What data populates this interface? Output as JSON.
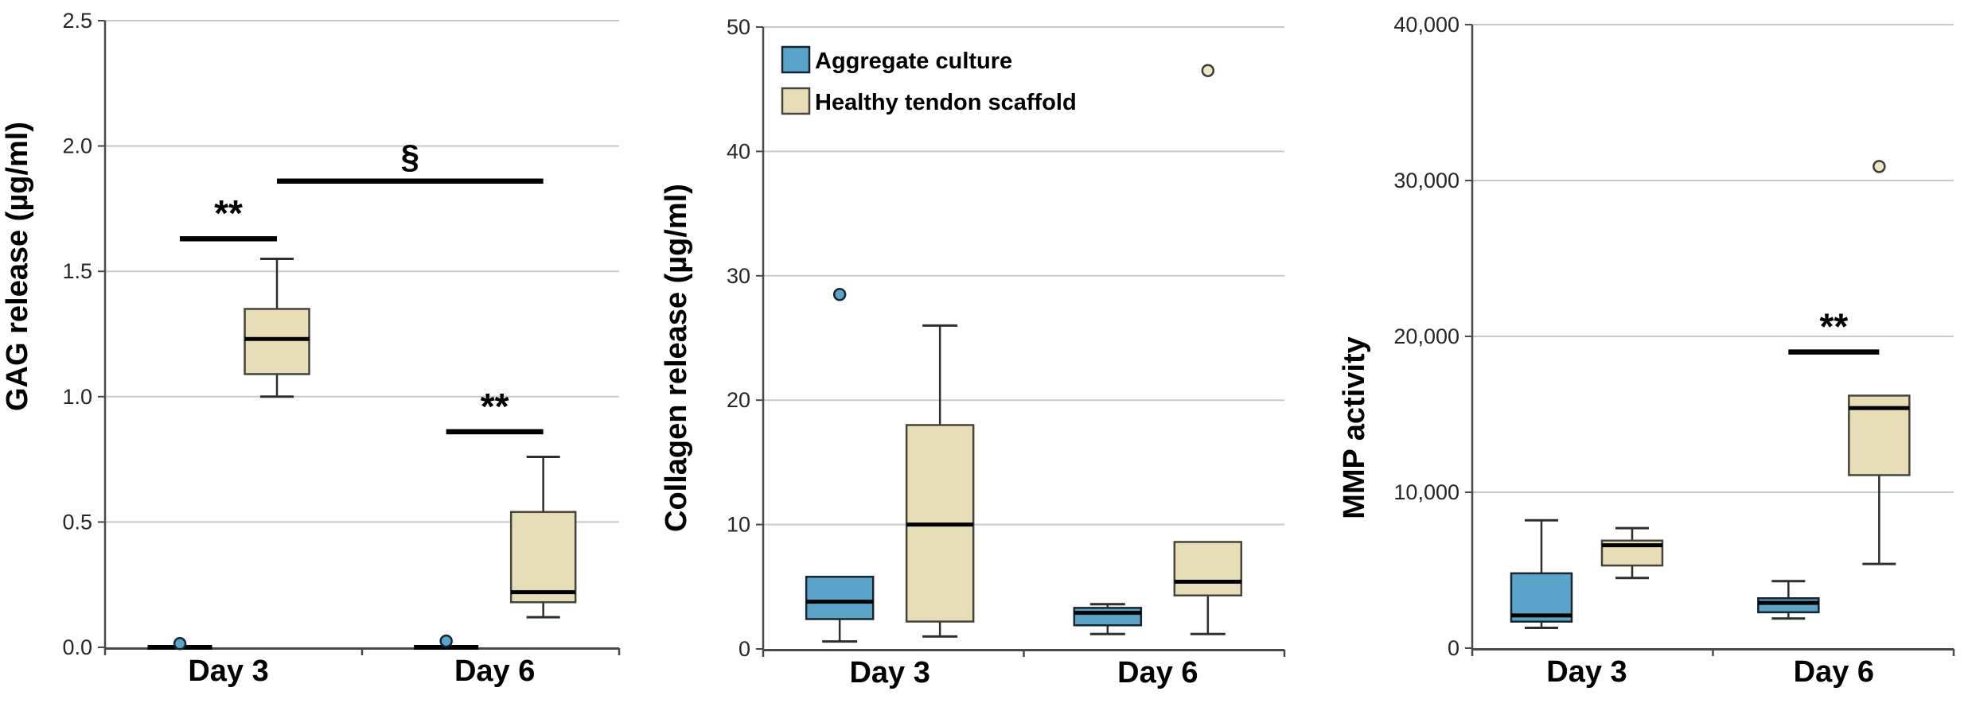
{
  "colors": {
    "aggregate_fill": "#5ba4c9",
    "aggregate_stroke": "#16262e",
    "scaffold_fill": "#e7ddb6",
    "scaffold_stroke": "#45443a",
    "outlier_tan_fill": "#ece5c7",
    "median": "#000000",
    "whisker": "#2e2e2e",
    "gridline": "#c8c8c8",
    "axis": "#4a4a4a",
    "text": "#262626",
    "annotation": "#000000"
  },
  "legend": {
    "items": [
      {
        "label": "Aggregate culture",
        "color": "#5ba4c9"
      },
      {
        "label": "Healthy tendon scaffold",
        "color": "#e7ddb6"
      }
    ]
  },
  "chart_data": [
    {
      "type": "box",
      "ylabel": "GAG release (µg/ml)",
      "ylim": [
        0,
        2.5
      ],
      "grid": "horizontal",
      "legend_position": "none",
      "yticks": [
        {
          "value": 0.0,
          "label": "0.0"
        },
        {
          "value": 0.5,
          "label": "0.5"
        },
        {
          "value": 1.0,
          "label": "1.0"
        },
        {
          "value": 1.5,
          "label": "1.5"
        },
        {
          "value": 2.0,
          "label": "2.0"
        },
        {
          "value": 2.5,
          "label": "2.5"
        }
      ],
      "categories": [
        "Day 3",
        "Day 6"
      ],
      "series": [
        {
          "name": "Aggregate culture",
          "boxes": [
            {
              "whisker_low": 0,
              "q1": 0,
              "median": 0,
              "q3": 0,
              "whisker_high": 0,
              "outliers": [
                0.015
              ]
            },
            {
              "whisker_low": 0,
              "q1": 0,
              "median": 0,
              "q3": 0,
              "whisker_high": 0,
              "outliers": [
                0.025
              ]
            }
          ]
        },
        {
          "name": "Healthy tendon scaffold",
          "boxes": [
            {
              "whisker_low": 1.0,
              "q1": 1.09,
              "median": 1.23,
              "q3": 1.35,
              "whisker_high": 1.55,
              "outliers": []
            },
            {
              "whisker_low": 0.12,
              "q1": 0.18,
              "median": 0.22,
              "q3": 0.54,
              "whisker_high": 0.76,
              "outliers": []
            }
          ]
        }
      ],
      "annotations": [
        {
          "label": "**",
          "y": 1.63,
          "from": {
            "category": 0,
            "series": 0
          },
          "to": {
            "category": 0,
            "series": 1
          }
        },
        {
          "label": "**",
          "y": 0.86,
          "from": {
            "category": 1,
            "series": 0
          },
          "to": {
            "category": 1,
            "series": 1
          }
        },
        {
          "label": "§",
          "y": 1.86,
          "from": {
            "category": 0,
            "series": 1
          },
          "to": {
            "category": 1,
            "series": 1
          }
        }
      ]
    },
    {
      "type": "box",
      "ylabel": "Collagen release (µg/ml)",
      "ylim": [
        0,
        50
      ],
      "grid": "horizontal",
      "legend_position": "top-left",
      "yticks": [
        {
          "value": 0,
          "label": "0"
        },
        {
          "value": 10,
          "label": "10"
        },
        {
          "value": 20,
          "label": "20"
        },
        {
          "value": 30,
          "label": "30"
        },
        {
          "value": 40,
          "label": "40"
        },
        {
          "value": 50,
          "label": "50"
        }
      ],
      "categories": [
        "Day 3",
        "Day 6"
      ],
      "series": [
        {
          "name": "Aggregate culture",
          "boxes": [
            {
              "whisker_low": 0.6,
              "q1": 2.4,
              "median": 3.8,
              "q3": 5.8,
              "whisker_high": 5.8,
              "outliers": [
                28.5
              ]
            },
            {
              "whisker_low": 1.2,
              "q1": 1.9,
              "median": 2.9,
              "q3": 3.3,
              "whisker_high": 3.6,
              "outliers": []
            }
          ]
        },
        {
          "name": "Healthy tendon scaffold",
          "boxes": [
            {
              "whisker_low": 1.0,
              "q1": 2.2,
              "median": 10.0,
              "q3": 18.0,
              "whisker_high": 26.0,
              "outliers": []
            },
            {
              "whisker_low": 1.2,
              "q1": 4.3,
              "median": 5.4,
              "q3": 8.6,
              "whisker_high": 8.6,
              "outliers": [
                46.5
              ]
            }
          ]
        }
      ],
      "annotations": []
    },
    {
      "type": "box",
      "ylabel": "MMP activity",
      "ylim": [
        0,
        40000
      ],
      "grid": "horizontal",
      "legend_position": "none",
      "yticks": [
        {
          "value": 0,
          "label": "0"
        },
        {
          "value": 10000,
          "label": "10,000"
        },
        {
          "value": 20000,
          "label": "20,000"
        },
        {
          "value": 30000,
          "label": "30,000"
        },
        {
          "value": 40000,
          "label": "40,000"
        }
      ],
      "categories": [
        "Day 3",
        "Day 6"
      ],
      "series": [
        {
          "name": "Aggregate culture",
          "boxes": [
            {
              "whisker_low": 1300,
              "q1": 1700,
              "median": 2100,
              "q3": 4800,
              "whisker_high": 8200,
              "outliers": []
            },
            {
              "whisker_low": 1900,
              "q1": 2300,
              "median": 2900,
              "q3": 3200,
              "whisker_high": 4300,
              "outliers": []
            }
          ]
        },
        {
          "name": "Healthy tendon scaffold",
          "boxes": [
            {
              "whisker_low": 4500,
              "q1": 5300,
              "median": 6600,
              "q3": 6900,
              "whisker_high": 7700,
              "outliers": []
            },
            {
              "whisker_low": 5400,
              "q1": 11100,
              "median": 15400,
              "q3": 16200,
              "whisker_high": 16200,
              "outliers": [
                30900
              ]
            }
          ]
        }
      ],
      "annotations": [
        {
          "label": "**",
          "y": 19000,
          "from": {
            "category": 1,
            "series": 0
          },
          "to": {
            "category": 1,
            "series": 1
          }
        }
      ]
    }
  ]
}
